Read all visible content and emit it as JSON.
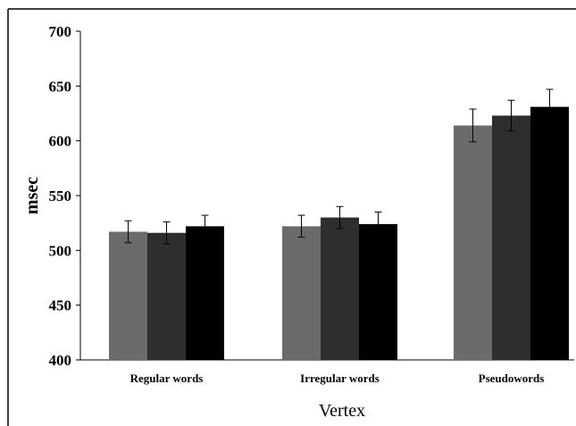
{
  "chart_data": {
    "type": "bar",
    "title": "",
    "xlabel": "Vertex",
    "ylabel": "msec",
    "ylim": [
      400,
      700
    ],
    "yticks": [
      400,
      450,
      500,
      550,
      600,
      650,
      700
    ],
    "grid": false,
    "legend": "none",
    "categories": [
      "Regular words",
      "Irregular words",
      "Pseudowords"
    ],
    "series": [
      {
        "color": "#6b6b6b",
        "values": [
          517,
          522,
          614
        ],
        "errors": [
          10,
          10,
          15
        ]
      },
      {
        "color": "#2e2e2e",
        "values": [
          516,
          530,
          623
        ],
        "errors": [
          10,
          10,
          14
        ]
      },
      {
        "color": "#000000",
        "values": [
          522,
          524,
          631
        ],
        "errors": [
          10,
          11,
          16
        ]
      }
    ]
  }
}
